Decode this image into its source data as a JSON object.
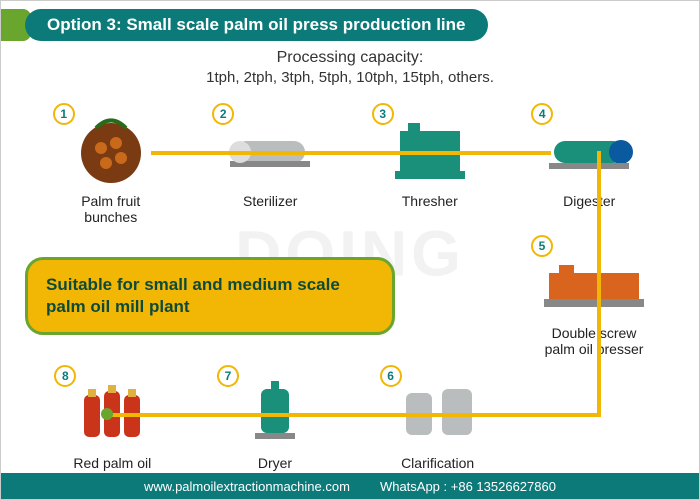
{
  "colors": {
    "accent_green": "#6aa52e",
    "header_teal": "#0d7a7a",
    "flow_yellow": "#f2b705",
    "step_circle_border": "#f2b705",
    "step_circle_fill": "#ffffff",
    "step_circle_text": "#0d7a7a",
    "note_bg": "#f2b705",
    "note_border": "#6aa52e",
    "note_text": "#0d4a3a",
    "footer_bg": "#0d7a7a",
    "machine_teal": "#1a8f7a",
    "machine_grey": "#b9bdbd",
    "machine_orange": "#d9641e",
    "palm_fruit": "#7a3a12",
    "oil_red": "#c9341a"
  },
  "header": {
    "prefix": "Option 3:",
    "title": "Small scale palm oil press production line",
    "fontsize": 17
  },
  "subheader": {
    "line1": "Processing capacity:",
    "line2": "1tph, 2tph, 3tph, 5tph, 10tph, 15tph, others."
  },
  "steps": [
    {
      "n": "1",
      "label": "Palm fruit\nbunches",
      "img_hint": "palm-fruit"
    },
    {
      "n": "2",
      "label": "Sterilizer",
      "img_hint": "grey-cylinder"
    },
    {
      "n": "3",
      "label": "Thresher",
      "img_hint": "teal-machine"
    },
    {
      "n": "4",
      "label": "Digester",
      "img_hint": "teal-cylinder"
    },
    {
      "n": "5",
      "label": "Double screw\npalm oil presser",
      "img_hint": "orange-machine"
    },
    {
      "n": "6",
      "label": "Clarification",
      "img_hint": "grey-tanks"
    },
    {
      "n": "7",
      "label": "Dryer",
      "img_hint": "teal-tank"
    },
    {
      "n": "8",
      "label": "Red palm oil",
      "img_hint": "red-bottles"
    }
  ],
  "note": "Suitable for small and medium scale palm oil mill plant",
  "watermark": "DOING",
  "footer": {
    "site": "www.palmoilextractionmachine.com",
    "whatsapp_label": "WhatsApp :",
    "whatsapp": "+86 13526627860"
  }
}
